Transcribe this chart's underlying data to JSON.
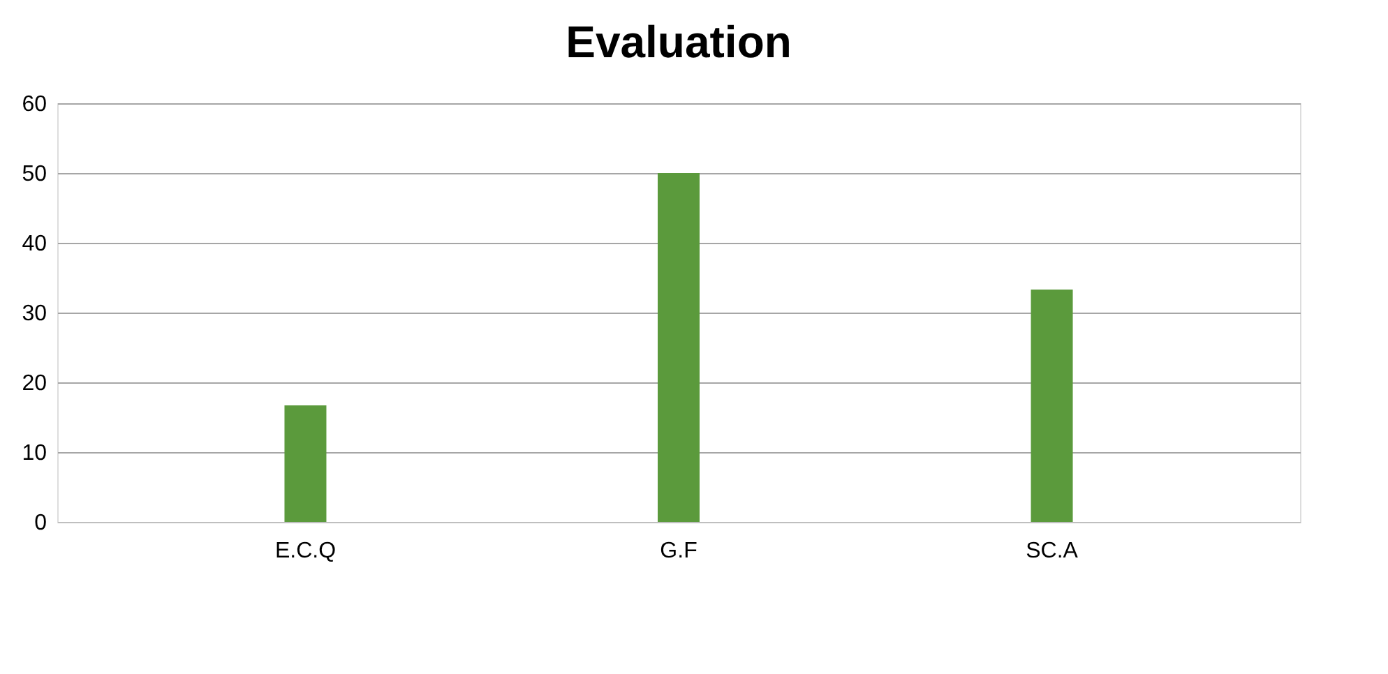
{
  "chart_data": {
    "type": "bar",
    "title": "Evaluation",
    "categories": [
      "E.C.Q",
      "G.F",
      "SC.A"
    ],
    "values": [
      16.7,
      50,
      33.3
    ],
    "color": "#5b9a3c",
    "ylim": [
      0,
      60
    ],
    "yticks": [
      0,
      10,
      20,
      30,
      40,
      50,
      60
    ],
    "grid": "y"
  }
}
